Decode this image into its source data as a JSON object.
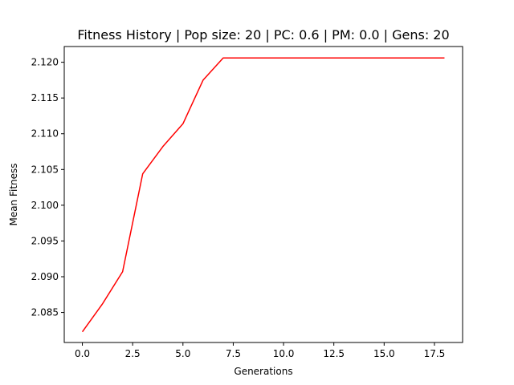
{
  "chart_data": {
    "type": "line",
    "title": "Fitness History | Pop size: 20 | PC: 0.6 | PM: 0.0 | Gens: 20",
    "xlabel": "Generations",
    "ylabel": "Mean Fitness",
    "xlim": [
      -0.9,
      18.9
    ],
    "ylim": [
      2.0808,
      2.1222
    ],
    "x_ticks": [
      0.0,
      2.5,
      5.0,
      7.5,
      10.0,
      12.5,
      15.0,
      17.5
    ],
    "x_tick_labels": [
      "0.0",
      "2.5",
      "5.0",
      "7.5",
      "10.0",
      "12.5",
      "15.0",
      "17.5"
    ],
    "y_ticks": [
      2.085,
      2.09,
      2.095,
      2.1,
      2.105,
      2.11,
      2.115,
      2.12
    ],
    "y_tick_labels": [
      "2.085",
      "2.090",
      "2.095",
      "2.100",
      "2.105",
      "2.110",
      "2.115",
      "2.120"
    ],
    "grid": false,
    "legend": "none",
    "series": [
      {
        "color": "#ff0000",
        "x": [
          0,
          1,
          2,
          3,
          4,
          5,
          6,
          7,
          8,
          9,
          10,
          11,
          12,
          13,
          14,
          15,
          16,
          17,
          18
        ],
        "values": [
          2.0823,
          2.0862,
          2.0907,
          2.1044,
          2.1082,
          2.1114,
          2.1175,
          2.1206,
          2.1206,
          2.1206,
          2.1206,
          2.1206,
          2.1206,
          2.1206,
          2.1206,
          2.1206,
          2.1206,
          2.1206,
          2.1206
        ]
      }
    ]
  }
}
